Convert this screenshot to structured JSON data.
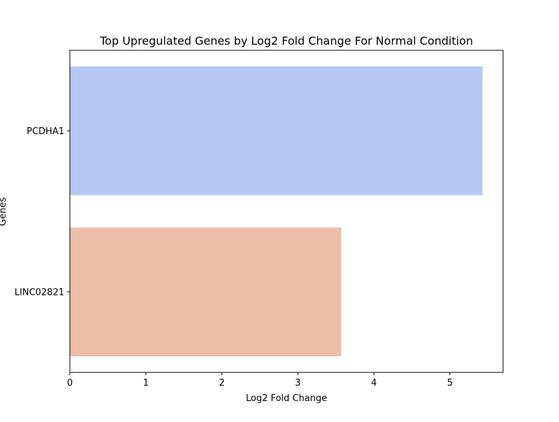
{
  "chart_data": {
    "type": "bar",
    "orientation": "horizontal",
    "title": "Top Upregulated Genes by Log2 Fold Change For Normal Condition",
    "xlabel": "Log2 Fold Change",
    "ylabel": "Genes",
    "categories": [
      "PCDHA1",
      "LINC02821"
    ],
    "values": [
      5.43,
      3.57
    ],
    "colors": [
      "#b5c9f2",
      "#ecbda8"
    ],
    "xlim": [
      0,
      5.7
    ],
    "xticks": [
      0,
      1,
      2,
      3,
      4,
      5
    ],
    "grid": false,
    "legend": "none"
  }
}
